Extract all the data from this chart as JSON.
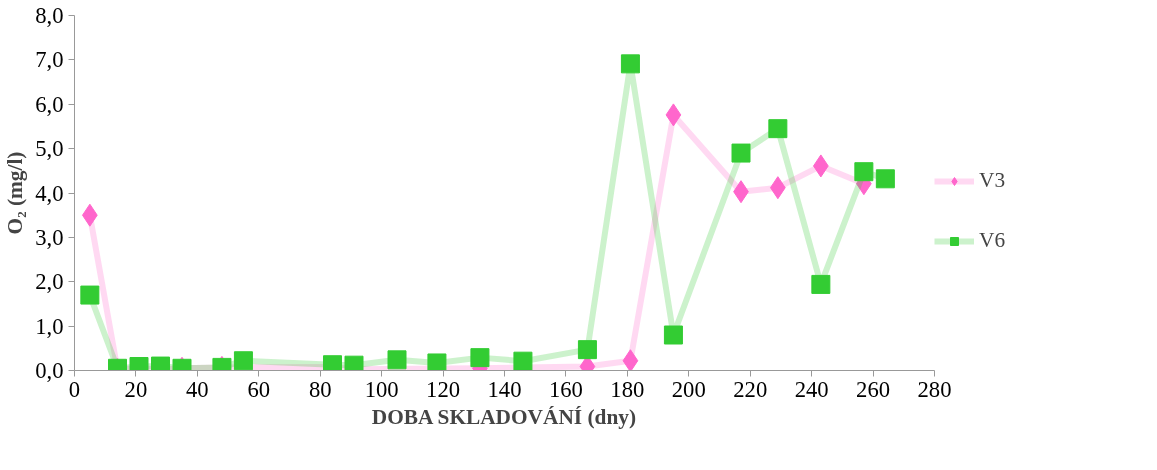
{
  "chart_data": {
    "type": "line",
    "xlabel": "DOBA SKLADOVÁNÍ (dny)",
    "ylabel": "O₂ (mg/l)",
    "xlim": [
      0,
      280
    ],
    "xticks": [
      0,
      20,
      40,
      60,
      80,
      100,
      120,
      140,
      160,
      180,
      200,
      220,
      240,
      260,
      280
    ],
    "ylim": [
      0,
      8
    ],
    "yticks": [
      {
        "value": 0,
        "label": "0,0"
      },
      {
        "value": 1,
        "label": "1,0"
      },
      {
        "value": 2,
        "label": "2,0"
      },
      {
        "value": 3,
        "label": "3,0"
      },
      {
        "value": 4,
        "label": "4,0"
      },
      {
        "value": 5,
        "label": "5,0"
      },
      {
        "value": 6,
        "label": "6,0"
      },
      {
        "value": 7,
        "label": "7,0"
      },
      {
        "value": 8,
        "label": "8,0"
      }
    ],
    "x": [
      5,
      14,
      21,
      28,
      35,
      48,
      55,
      84,
      91,
      105,
      118,
      132,
      146,
      167,
      181,
      195,
      217,
      229,
      243,
      257,
      264
    ],
    "series": [
      {
        "name": "V3",
        "color": "#ff66cc",
        "marker": "diamond",
        "values": [
          3.5,
          0.02,
          0.05,
          0.02,
          0.05,
          0.07,
          null,
          0.08,
          0.03,
          null,
          null,
          0.05,
          null,
          0.09,
          0.22,
          5.76,
          4.03,
          4.12,
          4.61,
          4.21,
          null
        ]
      },
      {
        "name": "V6",
        "color": "#33cc33",
        "marker": "square",
        "values": [
          1.7,
          0.05,
          0.09,
          0.1,
          0.05,
          0.07,
          0.22,
          0.13,
          0.12,
          0.24,
          0.17,
          0.29,
          0.21,
          0.47,
          6.91,
          0.8,
          4.9,
          5.45,
          1.94,
          4.48,
          4.32
        ]
      }
    ],
    "legend": "right",
    "grid": false
  }
}
